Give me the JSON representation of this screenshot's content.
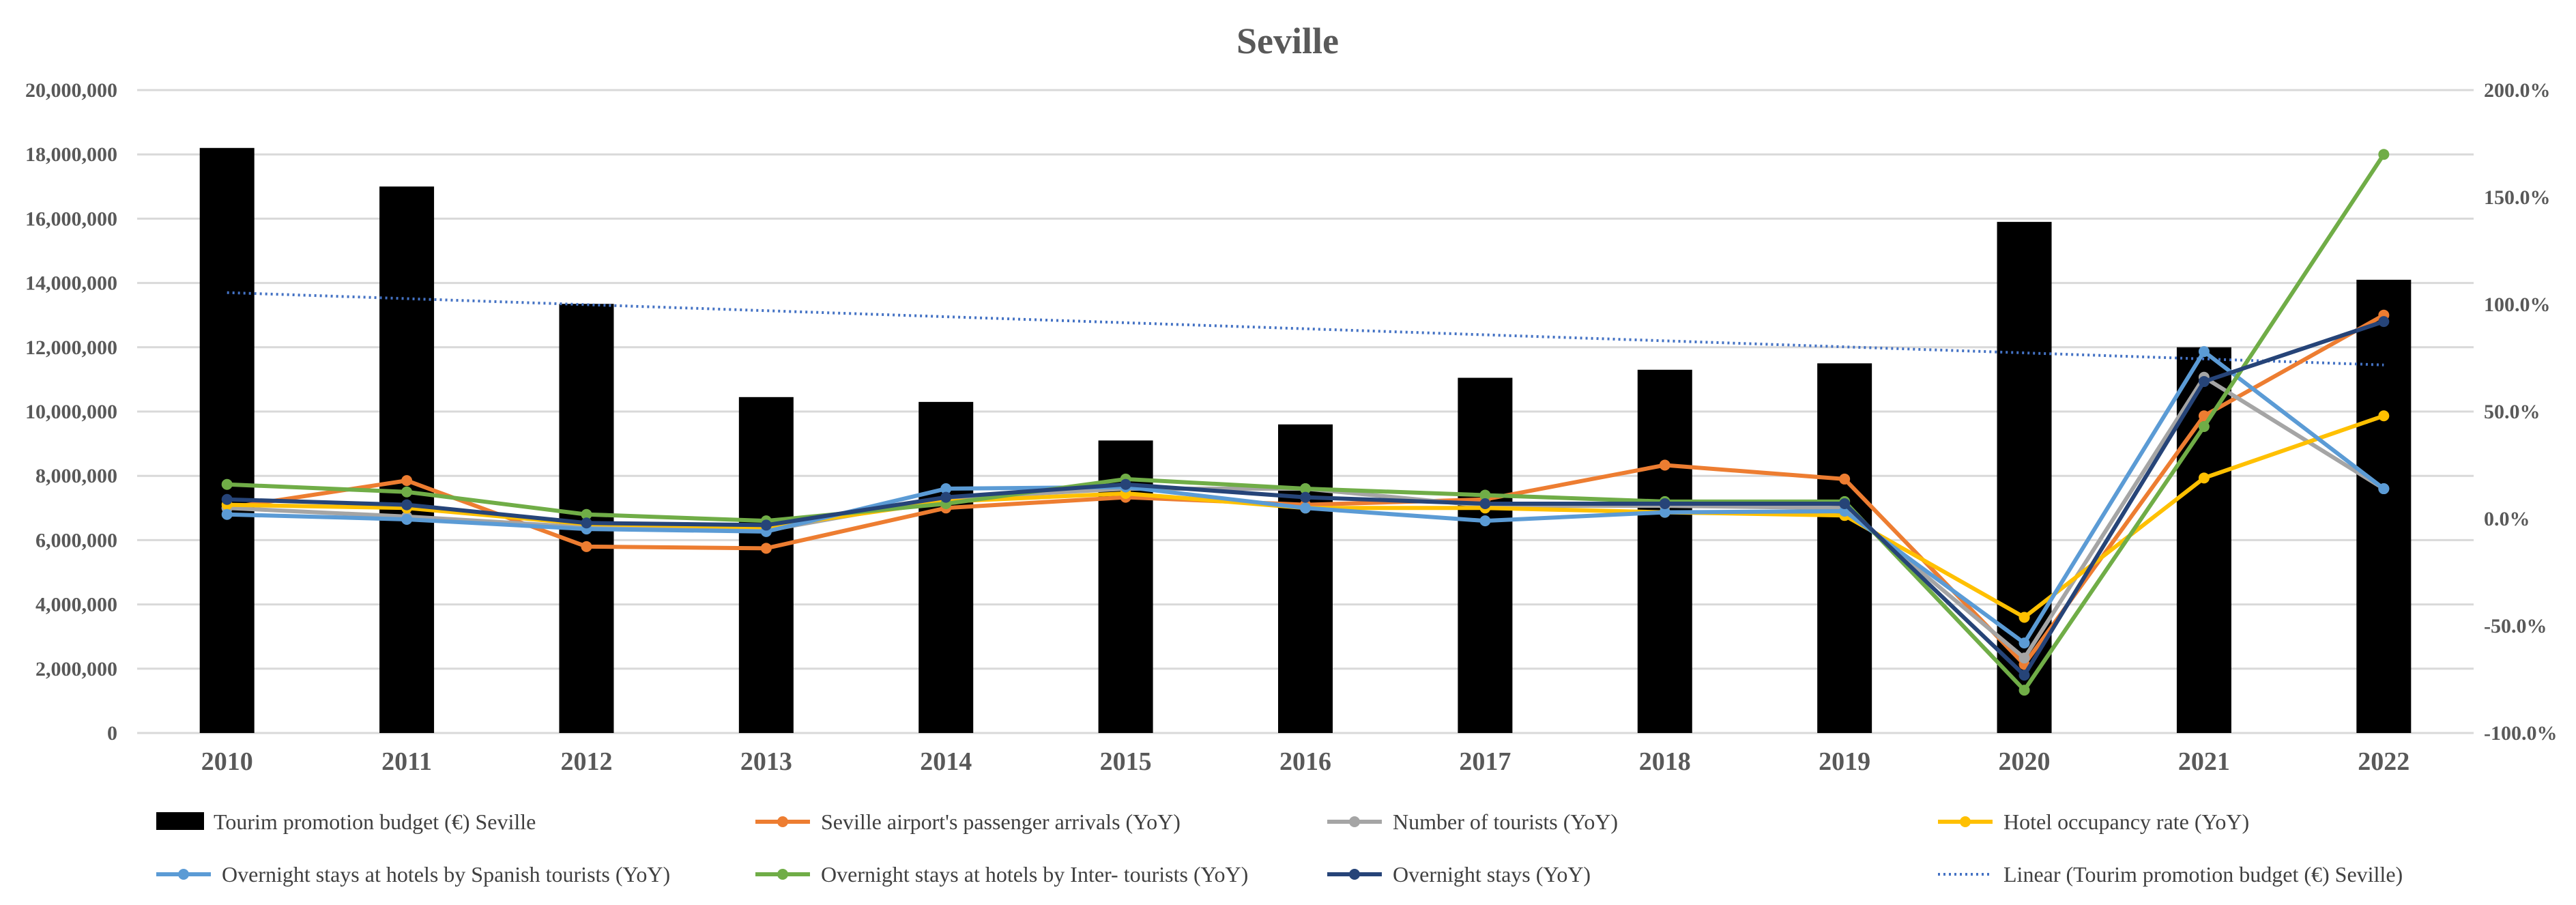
{
  "chart_data": {
    "type": "bar+line",
    "title": "Seville",
    "categories": [
      "2010",
      "2011",
      "2012",
      "2013",
      "2014",
      "2015",
      "2016",
      "2017",
      "2018",
      "2019",
      "2020",
      "2021",
      "2022"
    ],
    "left_axis": {
      "min": 0,
      "max": 20000000,
      "step": 2000000,
      "tick_labels": [
        "0",
        "2,000,000",
        "4,000,000",
        "6,000,000",
        "8,000,000",
        "10,000,000",
        "12,000,000",
        "14,000,000",
        "16,000,000",
        "18,000,000",
        "20,000,000"
      ]
    },
    "right_axis": {
      "min": -100,
      "max": 200,
      "step": 50,
      "tick_labels": [
        "-100.0%",
        "-50.0%",
        "0.0%",
        "50.0%",
        "100.0%",
        "150.0%",
        "200.0%"
      ]
    },
    "grid": true,
    "legend_placement": "bottom",
    "bars": {
      "name": "Tourim promotion budget (€) Seville",
      "color": "#000000",
      "values": [
        18200000,
        17000000,
        13350000,
        10450000,
        10300000,
        9100000,
        9600000,
        11050000,
        11300000,
        11500000,
        15900000,
        12000000,
        14100000
      ]
    },
    "series": [
      {
        "name": "Seville airport's passenger arrivals (YoY)",
        "color": "#ED7D31",
        "values": [
          5,
          17.8,
          -13,
          -13.8,
          5,
          10,
          6.5,
          9,
          25,
          18.5,
          -68,
          48,
          95
        ]
      },
      {
        "name": "Number of tourists (YoY)",
        "color": "#A5A5A5",
        "values": [
          5,
          1,
          -4,
          -5.5,
          9.5,
          14,
          14,
          6,
          6,
          5,
          -65,
          66,
          14
        ]
      },
      {
        "name": "Hotel occupancy rate (YoY)",
        "color": "#FFC000",
        "values": [
          6.5,
          5,
          -2.5,
          -4,
          8,
          11.8,
          5,
          5,
          3,
          1.5,
          -46,
          19,
          48
        ]
      },
      {
        "name": "Overnight stays at hotels by Spanish tourists (YoY)",
        "color": "#5B9BD5",
        "values": [
          2,
          -0.3,
          -4.8,
          -6,
          14,
          14.8,
          5,
          -1,
          3,
          3.5,
          -58,
          78,
          14
        ]
      },
      {
        "name": "Overnight stays at hotels by Inter- tourists (YoY)",
        "color": "#70AD47",
        "values": [
          16,
          12.5,
          2,
          -1,
          7,
          18.5,
          14,
          11,
          8,
          8,
          -80,
          43,
          170
        ]
      },
      {
        "name": "Overnight stays (YoY)",
        "color": "#264478",
        "values": [
          9,
          6.5,
          -2,
          -3,
          10,
          16,
          10,
          7,
          7,
          7,
          -73,
          64,
          92
        ]
      }
    ],
    "trendline": {
      "name": "Linear (Tourim promotion budget (€) Seville)",
      "color": "#4472C4",
      "style": "dotted",
      "start": 13700000,
      "end": 11450000
    }
  }
}
